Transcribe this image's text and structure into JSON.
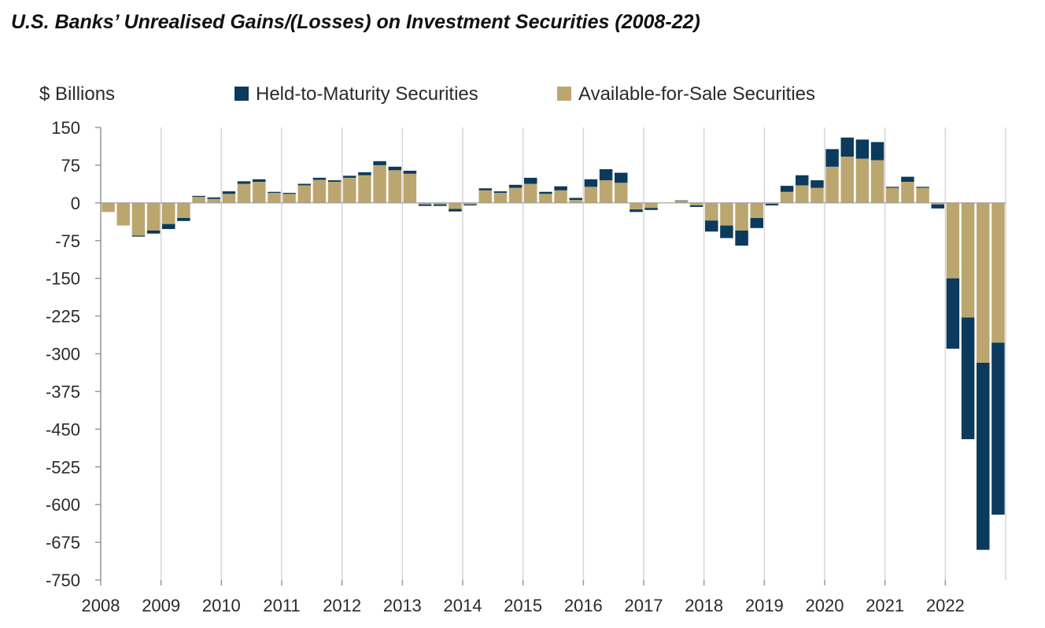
{
  "colors": {
    "htm": "#0b3a5c",
    "afs": "#bca66f",
    "grid": "#d6d6d6",
    "axis": "#9a9a9a"
  },
  "chart_data": {
    "type": "bar",
    "stacked": true,
    "title": "U.S. Banks’ Unrealised Gains/(Losses) on Investment Securities (2008-22)",
    "ylabel": "$ Billions",
    "xlabel": "",
    "ylim": [
      -750,
      150
    ],
    "yticks": [
      150,
      75,
      0,
      -75,
      -150,
      -225,
      -300,
      -375,
      -450,
      -525,
      -600,
      -675,
      -750
    ],
    "year_labels": [
      "2008",
      "2009",
      "2010",
      "2011",
      "2012",
      "2013",
      "2014",
      "2015",
      "2016",
      "2017",
      "2018",
      "2019",
      "2020",
      "2021",
      "2022"
    ],
    "quarters_per_year": 4,
    "legend": [
      "Held-to-Maturity Securities",
      "Available-for-Sale Securities"
    ],
    "legend_position": "top",
    "vertical_gridlines": true,
    "series": [
      {
        "name": "Available-for-Sale Securities",
        "key": "afs",
        "values": [
          -18,
          -45,
          -65,
          -55,
          -42,
          -30,
          12,
          8,
          18,
          38,
          42,
          20,
          18,
          35,
          46,
          42,
          50,
          55,
          75,
          65,
          58,
          -3,
          -3,
          -12,
          -3,
          25,
          20,
          30,
          38,
          18,
          25,
          6,
          32,
          45,
          40,
          -13,
          -10,
          0,
          4,
          -5,
          -35,
          -45,
          -55,
          -30,
          -2,
          22,
          35,
          30,
          72,
          92,
          88,
          85,
          30,
          42,
          30,
          -3,
          -150,
          -228,
          -318,
          -278
        ]
      },
      {
        "name": "Held-to-Maturity Securities",
        "key": "htm",
        "values": [
          0,
          0,
          -2,
          -6,
          -10,
          -6,
          2,
          3,
          5,
          5,
          5,
          2,
          2,
          3,
          4,
          3,
          4,
          6,
          8,
          7,
          6,
          -3,
          -3,
          -5,
          -2,
          4,
          3,
          6,
          12,
          4,
          8,
          4,
          15,
          22,
          20,
          -5,
          -4,
          0,
          1,
          -3,
          -22,
          -25,
          -30,
          -20,
          -3,
          12,
          20,
          15,
          35,
          38,
          38,
          36,
          2,
          10,
          2,
          -8,
          -140,
          -242,
          -372,
          -342
        ]
      }
    ]
  }
}
